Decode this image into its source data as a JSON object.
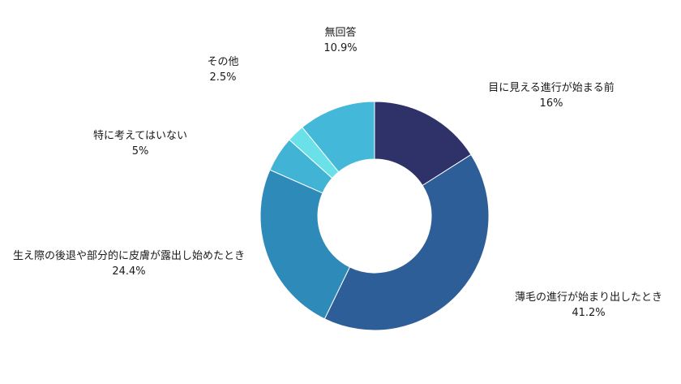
{
  "chart_data": {
    "type": "pie",
    "donut": true,
    "title": "",
    "legend": "none",
    "slices": [
      {
        "label": "目に見える進行が始まる前",
        "value": 16,
        "display": "16%",
        "color": "#2e3269"
      },
      {
        "label": "薄毛の進行が始まり出したとき",
        "value": 41.2,
        "display": "41.2%",
        "color": "#2e5e98"
      },
      {
        "label": "生え際の後退や部分的に皮膚が露出し始めたとき",
        "value": 24.4,
        "display": "24.4%",
        "color": "#2e8ab9"
      },
      {
        "label": "特に考えてはいない",
        "value": 5,
        "display": "5%",
        "color": "#41b3d5"
      },
      {
        "label": "その他",
        "value": 2.5,
        "display": "2.5%",
        "color": "#6ae0e8"
      },
      {
        "label": "無回答",
        "value": 10.9,
        "display": "10.9%",
        "color": "#44b8d8"
      }
    ]
  }
}
